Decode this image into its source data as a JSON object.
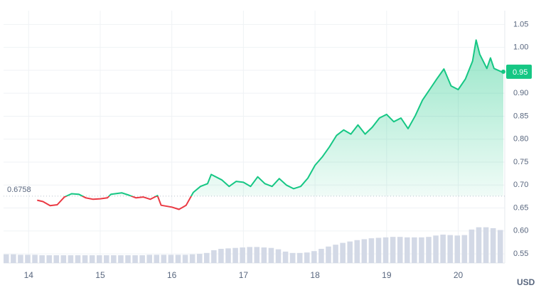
{
  "chart_data": {
    "type": "line",
    "x": [
      14.12,
      14.2,
      14.3,
      14.4,
      14.5,
      14.6,
      14.7,
      14.8,
      14.9,
      15.0,
      15.1,
      15.15,
      15.3,
      15.4,
      15.5,
      15.6,
      15.7,
      15.8,
      15.85,
      16.0,
      16.1,
      16.2,
      16.3,
      16.4,
      16.5,
      16.55,
      16.7,
      16.8,
      16.9,
      17.0,
      17.1,
      17.2,
      17.3,
      17.4,
      17.5,
      17.6,
      17.7,
      17.8,
      17.9,
      18.0,
      18.1,
      18.2,
      18.3,
      18.4,
      18.5,
      18.6,
      18.7,
      18.8,
      18.9,
      19.0,
      19.1,
      19.2,
      19.3,
      19.4,
      19.5,
      19.6,
      19.7,
      19.8,
      19.9,
      20.0,
      20.1,
      20.2,
      20.25,
      20.3,
      20.4,
      20.45,
      20.5,
      20.6,
      20.63
    ],
    "values": [
      0.667,
      0.664,
      0.655,
      0.657,
      0.674,
      0.681,
      0.68,
      0.672,
      0.669,
      0.67,
      0.672,
      0.68,
      0.683,
      0.678,
      0.672,
      0.674,
      0.669,
      0.677,
      0.656,
      0.652,
      0.647,
      0.656,
      0.684,
      0.697,
      0.703,
      0.723,
      0.711,
      0.697,
      0.708,
      0.706,
      0.697,
      0.718,
      0.703,
      0.697,
      0.714,
      0.7,
      0.692,
      0.697,
      0.715,
      0.743,
      0.761,
      0.783,
      0.808,
      0.82,
      0.811,
      0.831,
      0.811,
      0.826,
      0.846,
      0.854,
      0.838,
      0.846,
      0.823,
      0.851,
      0.885,
      0.908,
      0.931,
      0.953,
      0.916,
      0.908,
      0.931,
      0.97,
      1.016,
      0.985,
      0.954,
      0.977,
      0.954,
      0.947,
      0.947
    ],
    "baseline": 0.6758,
    "current_price_label": "0.95",
    "up_color": "#16c784",
    "down_color": "#ea3943",
    "volume": {
      "color": "#d3d9e6",
      "x": [
        13.7,
        13.8,
        13.9,
        14.0,
        14.1,
        14.2,
        14.3,
        14.4,
        14.5,
        14.6,
        14.7,
        14.8,
        14.9,
        15.0,
        15.1,
        15.2,
        15.3,
        15.4,
        15.5,
        15.6,
        15.7,
        15.8,
        15.9,
        16.0,
        16.1,
        16.2,
        16.3,
        16.4,
        16.5,
        16.6,
        16.7,
        16.8,
        16.9,
        17.0,
        17.1,
        17.2,
        17.3,
        17.4,
        17.5,
        17.6,
        17.7,
        17.8,
        17.9,
        18.0,
        18.1,
        18.2,
        18.3,
        18.4,
        18.5,
        18.6,
        18.7,
        18.8,
        18.9,
        19.0,
        19.1,
        19.2,
        19.3,
        19.4,
        19.5,
        19.6,
        19.7,
        19.8,
        19.9,
        20.0,
        20.1,
        20.2,
        20.3,
        20.4,
        20.5,
        20.6
      ],
      "values": [
        0.549,
        0.549,
        0.548,
        0.548,
        0.548,
        0.547,
        0.547,
        0.547,
        0.547,
        0.547,
        0.547,
        0.547,
        0.547,
        0.547,
        0.547,
        0.547,
        0.547,
        0.547,
        0.547,
        0.547,
        0.548,
        0.548,
        0.548,
        0.548,
        0.548,
        0.548,
        0.549,
        0.55,
        0.552,
        0.558,
        0.561,
        0.562,
        0.563,
        0.564,
        0.565,
        0.565,
        0.564,
        0.563,
        0.56,
        0.555,
        0.552,
        0.552,
        0.553,
        0.556,
        0.561,
        0.566,
        0.57,
        0.574,
        0.577,
        0.58,
        0.582,
        0.584,
        0.585,
        0.586,
        0.587,
        0.587,
        0.586,
        0.586,
        0.586,
        0.587,
        0.59,
        0.592,
        0.591,
        0.59,
        0.591,
        0.603,
        0.608,
        0.608,
        0.606,
        0.602
      ]
    },
    "xlim": [
      13.65,
      20.65
    ],
    "xticks": [
      14,
      15,
      16,
      17,
      18,
      19,
      20
    ],
    "ylim": [
      0.53,
      1.08
    ],
    "yticks": [
      0.55,
      {
        "value": 0.6,
        "label": "0.60"
      },
      0.65,
      {
        "value": 0.7,
        "label": "0.70"
      },
      0.75,
      {
        "value": 0.8,
        "label": "0.80"
      },
      0.85,
      {
        "value": 0.9,
        "label": "0.90"
      },
      0.95,
      {
        "value": 1.0,
        "label": "1.00"
      },
      1.05
    ],
    "y_unit": "USD",
    "grid": true
  }
}
